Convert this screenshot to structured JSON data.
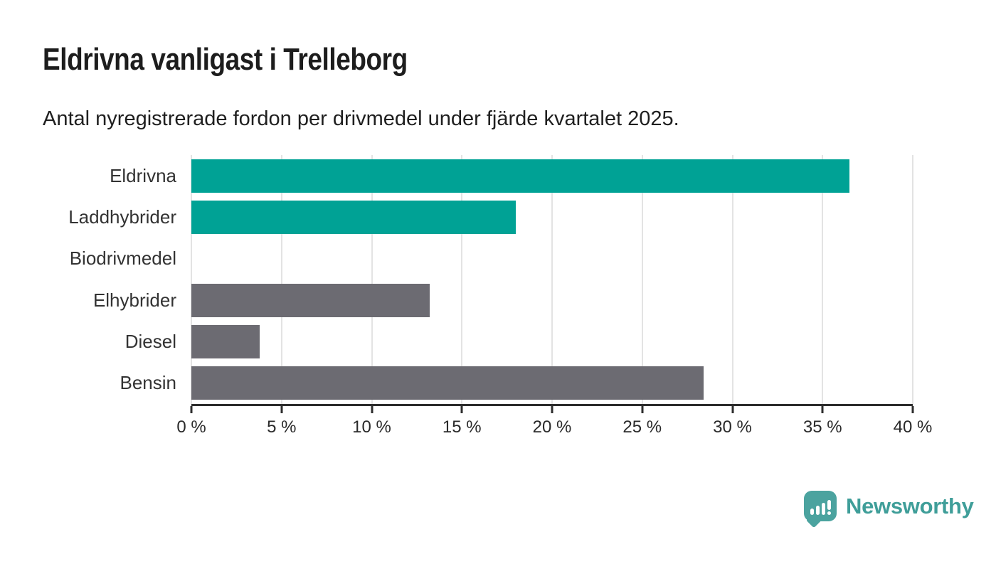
{
  "title": "Eldrivna vanligast i Trelleborg",
  "subtitle": "Antal nyregistrerade fordon per drivmedel under fjärde kvartalet 2025.",
  "chart_data": {
    "type": "bar",
    "orientation": "horizontal",
    "title": "Eldrivna vanligast i Trelleborg",
    "subtitle": "Antal nyregistrerade fordon per drivmedel under fjärde kvartalet 2025.",
    "categories": [
      "Eldrivna",
      "Laddhybrider",
      "Biodrivmedel",
      "Elhybrider",
      "Diesel",
      "Bensin"
    ],
    "values": [
      36.5,
      18.0,
      0,
      13.2,
      3.8,
      28.4
    ],
    "unit": "%",
    "xlabel": "",
    "ylabel": "",
    "xlim": [
      0,
      40
    ],
    "x_ticks": [
      0,
      5,
      10,
      15,
      20,
      25,
      30,
      35,
      40
    ],
    "x_tick_labels": [
      "0 %",
      "5 %",
      "10 %",
      "15 %",
      "20 %",
      "25 %",
      "30 %",
      "35 %",
      "40 %"
    ],
    "bar_colors": [
      "#00a295",
      "#00a295",
      "#00a295",
      "#6c6b72",
      "#6c6b72",
      "#6c6b72"
    ],
    "grid": "vertical-gridlines-on",
    "legend": "none"
  },
  "colors": {
    "teal": "#00a295",
    "gray": "#6c6b72",
    "axis": "#2d2d2d",
    "gridline": "#e3e3e3",
    "logo_teal": "#4ba39f",
    "logo_text_teal": "#3f9e99"
  },
  "footer": {
    "brand": "Newsworthy"
  },
  "icons": {
    "logo": "newsworthy-bar-chart-speech-bubble-icon"
  }
}
